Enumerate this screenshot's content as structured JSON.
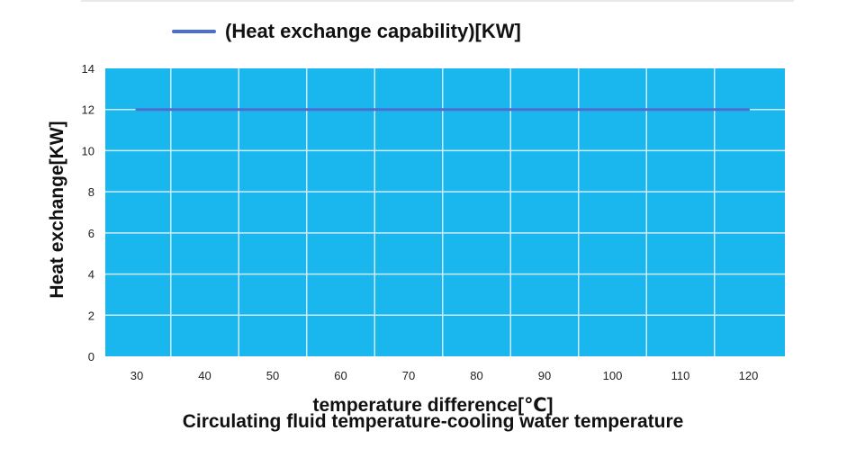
{
  "chart_data": {
    "type": "line",
    "title": "",
    "legend": [
      "(Heat exchange capability)[KW]"
    ],
    "legend_position": "top",
    "xlabel": "temperature difference[℃]",
    "xlabel_sub": "Circulating fluid temperature-cooling water temperature",
    "ylabel": "Heat exchange[KW]",
    "x_ticks": [
      30,
      40,
      50,
      60,
      70,
      80,
      90,
      100,
      110,
      120
    ],
    "y_ticks": [
      0,
      2,
      4,
      6,
      8,
      10,
      12,
      14
    ],
    "ylim": [
      0,
      14
    ],
    "grid": true,
    "colors": {
      "plot_background": "#1ab7ee",
      "grid": "#cfeaf7",
      "series": "#4a6fd0"
    },
    "series": [
      {
        "name": "(Heat exchange capability)[KW]",
        "x": [
          30,
          120
        ],
        "values": [
          12,
          12
        ]
      }
    ]
  }
}
